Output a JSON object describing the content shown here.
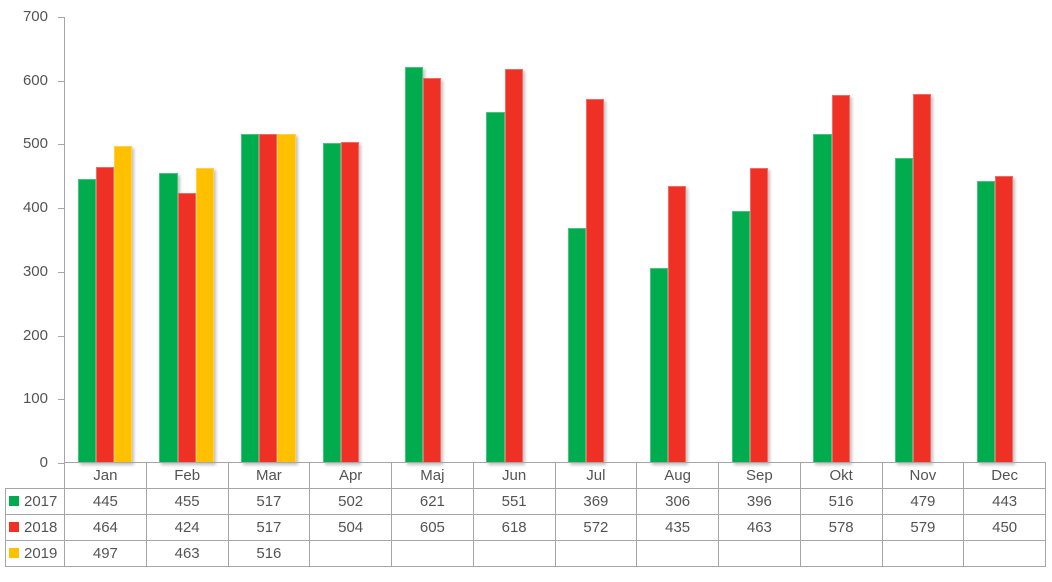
{
  "chart_data": {
    "type": "bar",
    "title": "",
    "xlabel": "",
    "ylabel": "",
    "categories": [
      "Jan",
      "Feb",
      "Mar",
      "Apr",
      "Maj",
      "Jun",
      "Jul",
      "Aug",
      "Sep",
      "Okt",
      "Nov",
      "Dec"
    ],
    "series": [
      {
        "name": "2017",
        "color": "#00ac4e",
        "values": [
          445,
          455,
          517,
          502,
          621,
          551,
          369,
          306,
          396,
          516,
          479,
          443
        ]
      },
      {
        "name": "2018",
        "color": "#ee3124",
        "values": [
          464,
          424,
          517,
          504,
          605,
          618,
          572,
          435,
          463,
          578,
          579,
          450
        ]
      },
      {
        "name": "2019",
        "color": "#ffc000",
        "values": [
          497,
          463,
          516,
          null,
          null,
          null,
          null,
          null,
          null,
          null,
          null,
          null
        ]
      }
    ],
    "ylim": [
      0,
      700
    ],
    "yticks": [
      0,
      100,
      200,
      300,
      400,
      500,
      600,
      700
    ],
    "grid": false,
    "legend_position": "data-table-left",
    "data_table_shown": true
  },
  "colors": {
    "background": "#ffffff",
    "axis": "#a6a6a6",
    "table_border": "#a6a6a6",
    "text": "#545454"
  }
}
